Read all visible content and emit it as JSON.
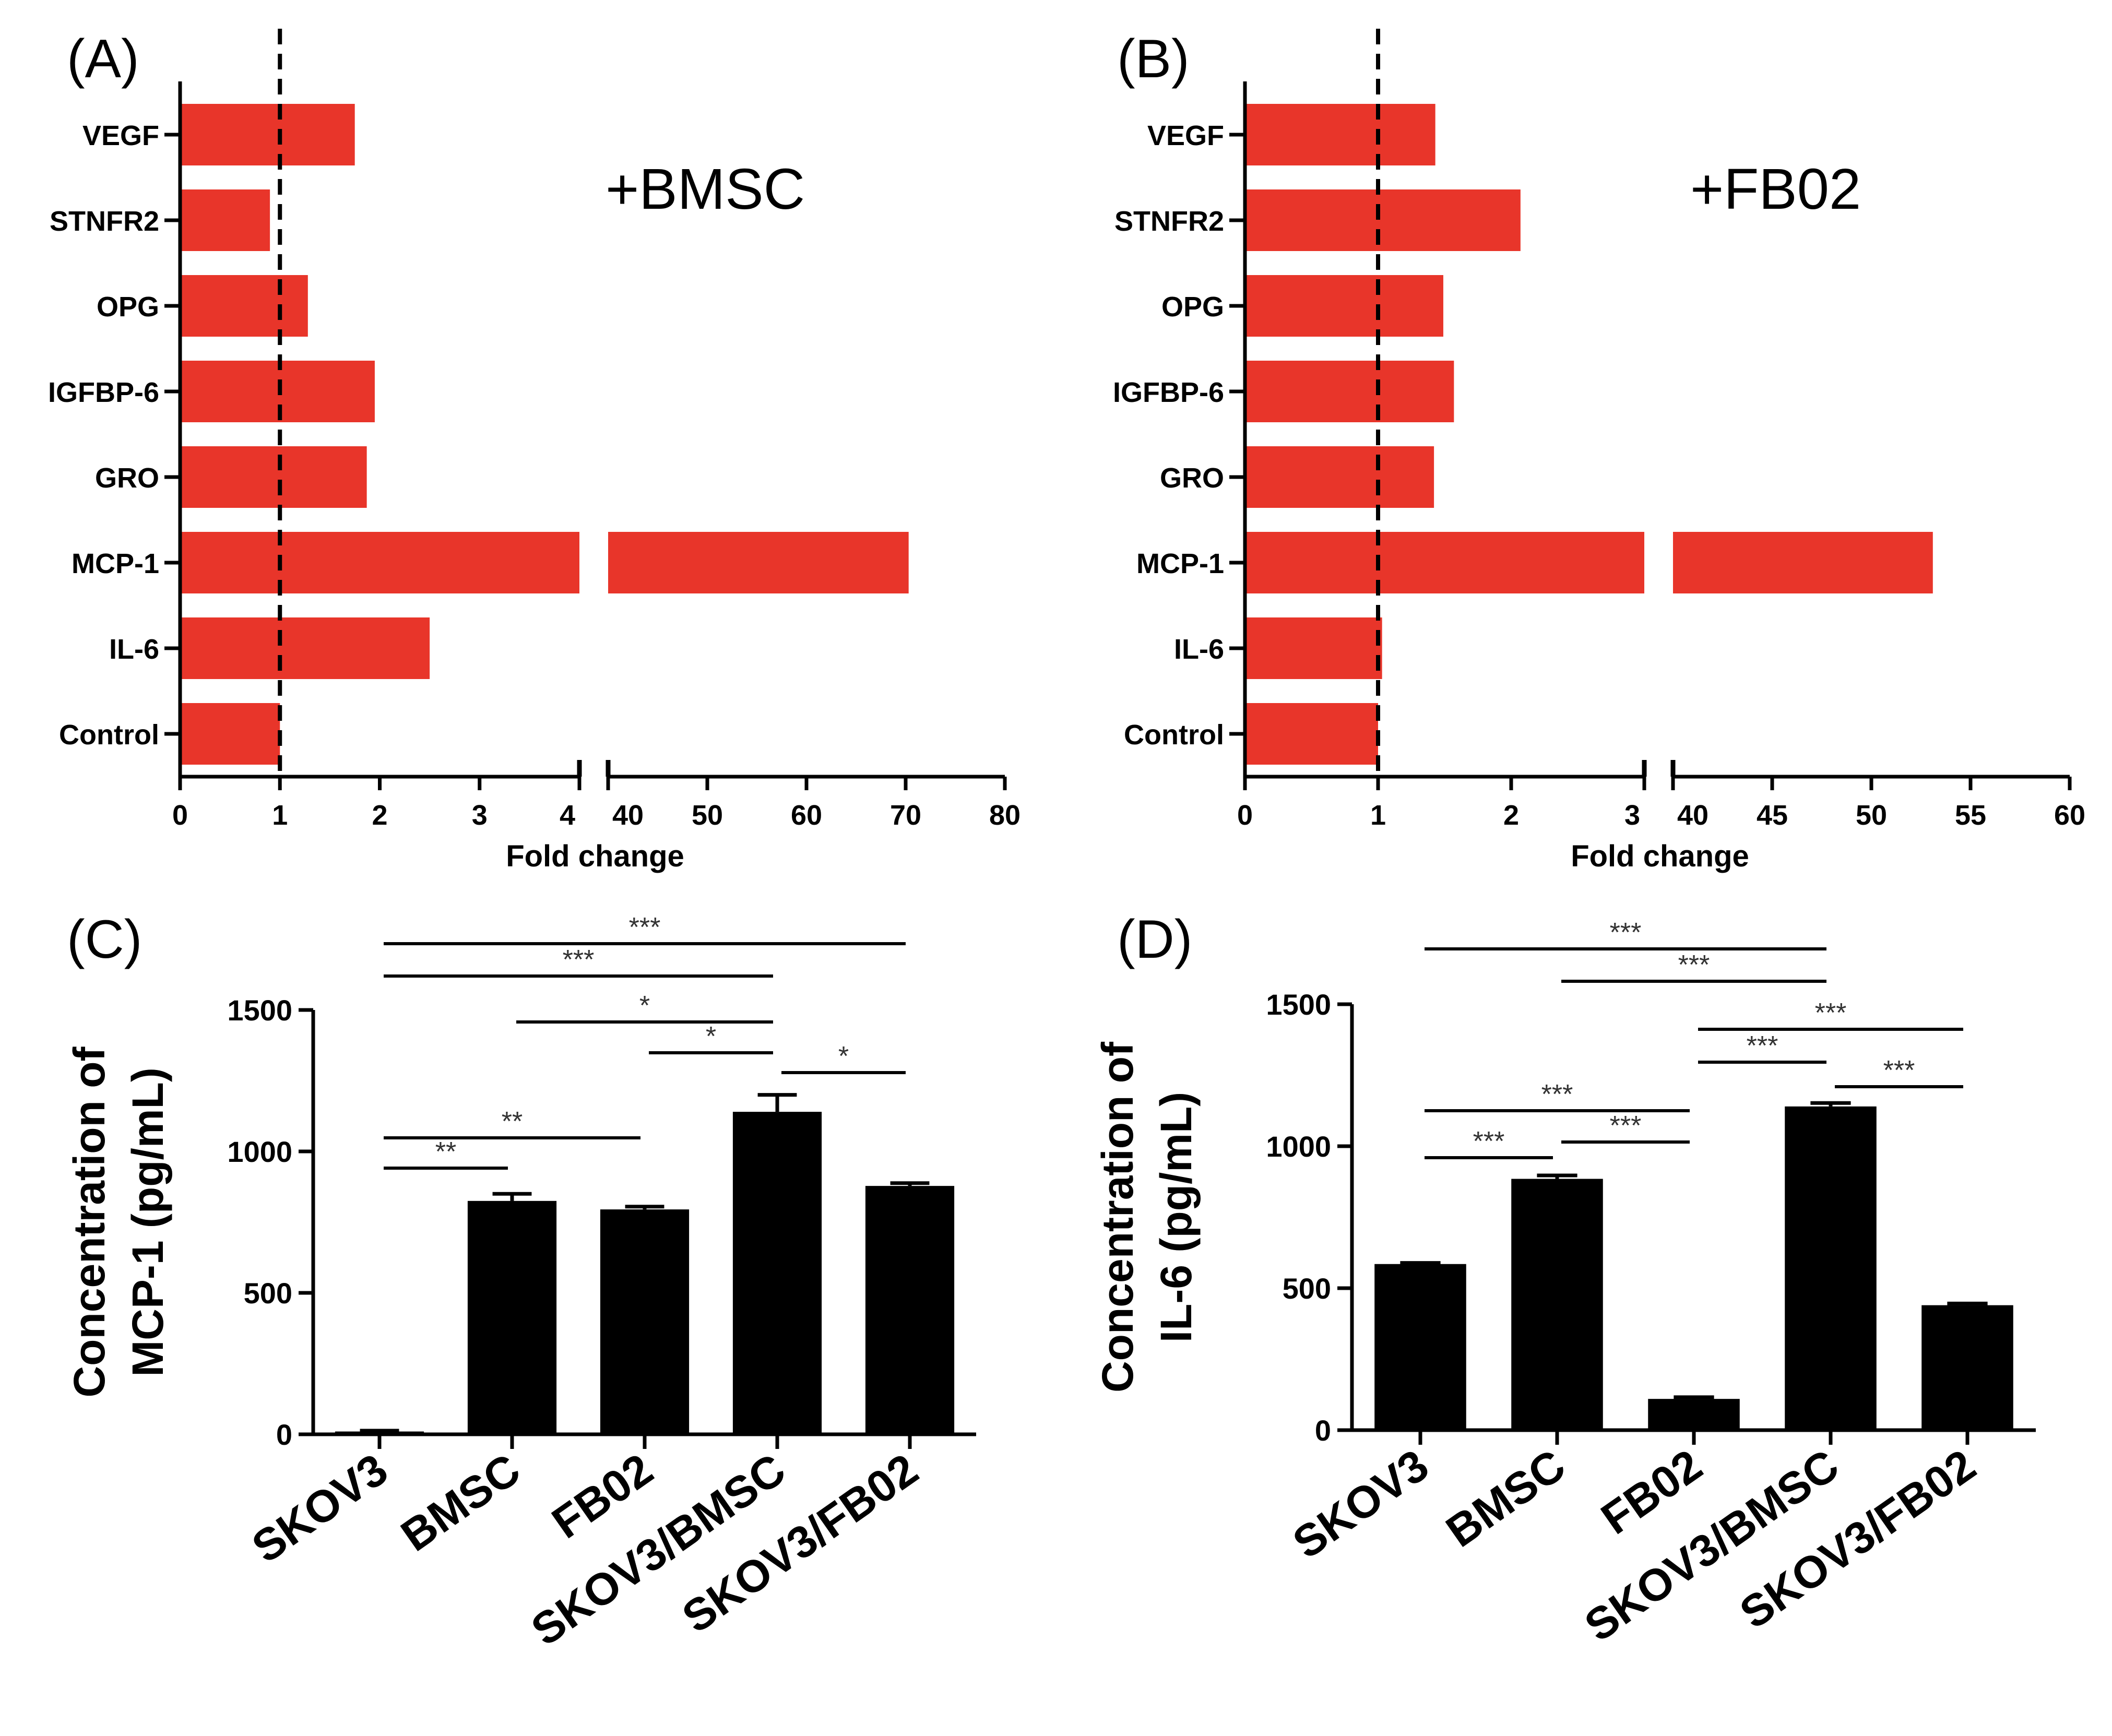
{
  "panels": [
    {
      "id": "A",
      "panel_label": "(A)",
      "annotation": "+BMSC",
      "chart_data": {
        "type": "bar",
        "orientation": "horizontal",
        "categories": [
          "VEGF",
          "STNFR2",
          "OPG",
          "IGFBP-6",
          "GRO",
          "MCP-1",
          "IL-6",
          "Control"
        ],
        "values": [
          1.75,
          0.9,
          1.28,
          1.95,
          1.87,
          70.3,
          2.5,
          1.0
        ],
        "xlabel": "Fold change",
        "reference_line": 1,
        "x_segments": [
          {
            "range": [
              0,
              4
            ],
            "ticks": [
              0,
              1,
              2,
              3,
              4
            ]
          },
          {
            "range": [
              40,
              80
            ],
            "ticks": [
              40,
              50,
              60,
              70,
              80
            ]
          }
        ],
        "bar_color": "#e8352a"
      }
    },
    {
      "id": "B",
      "panel_label": "(B)",
      "annotation": "+FB02",
      "chart_data": {
        "type": "bar",
        "orientation": "horizontal",
        "categories": [
          "VEGF",
          "STNFR2",
          "OPG",
          "IGFBP-6",
          "GRO",
          "MCP-1",
          "IL-6",
          "Control"
        ],
        "values": [
          1.43,
          2.07,
          1.49,
          1.57,
          1.42,
          53.1,
          1.03,
          1.0
        ],
        "xlabel": "Fold change",
        "reference_line": 1,
        "x_segments": [
          {
            "range": [
              0,
              3
            ],
            "ticks": [
              0,
              1,
              2,
              3
            ]
          },
          {
            "range": [
              40,
              60
            ],
            "ticks": [
              40,
              45,
              50,
              55,
              60
            ]
          }
        ],
        "bar_color": "#e8352a"
      }
    },
    {
      "id": "C",
      "panel_label": "(C)",
      "chart_data": {
        "type": "bar",
        "categories": [
          "SKOV3",
          "BMSC",
          "FB02",
          "SKOV3/BMSC",
          "SKOV3/FB02"
        ],
        "values": [
          10,
          825,
          795,
          1140,
          878
        ],
        "errors": [
          3,
          25,
          10,
          60,
          10
        ],
        "ylabel_line1": "Concentration of",
        "ylabel_line2": "MCP-1 (pg/mL)",
        "ylim": [
          0,
          1500
        ],
        "yticks": [
          0,
          500,
          1000,
          1500
        ],
        "bar_color": "#000000",
        "significance": [
          {
            "from": 0,
            "to": 4,
            "label": "***"
          },
          {
            "from": 0,
            "to": 3,
            "label": "***"
          },
          {
            "from": 1,
            "to": 3,
            "label": "*"
          },
          {
            "from": 2,
            "to": 3,
            "label": "*"
          },
          {
            "from": 3,
            "to": 4,
            "label": "*"
          },
          {
            "from": 0,
            "to": 2,
            "label": "**"
          },
          {
            "from": 0,
            "to": 1,
            "label": "**"
          }
        ]
      }
    },
    {
      "id": "D",
      "panel_label": "(D)",
      "chart_data": {
        "type": "bar",
        "categories": [
          "SKOV3",
          "BMSC",
          "FB02",
          "SKOV3/BMSC",
          "SKOV3/FB02"
        ],
        "values": [
          585,
          885,
          110,
          1140,
          440
        ],
        "errors": [
          4,
          12,
          6,
          12,
          6
        ],
        "ylabel_line1": "Concentration of",
        "ylabel_line2": "IL-6 (pg/mL)",
        "ylim": [
          0,
          1500
        ],
        "yticks": [
          0,
          500,
          1000,
          1500
        ],
        "bar_color": "#000000",
        "significance": [
          {
            "from": 0,
            "to": 3,
            "label": "***"
          },
          {
            "from": 1,
            "to": 3,
            "label": "***"
          },
          {
            "from": 2,
            "to": 4,
            "label": "***"
          },
          {
            "from": 2,
            "to": 3,
            "label": "***"
          },
          {
            "from": 3,
            "to": 4,
            "label": "***"
          },
          {
            "from": 0,
            "to": 2,
            "label": "***"
          },
          {
            "from": 1,
            "to": 2,
            "label": "***"
          },
          {
            "from": 0,
            "to": 1,
            "label": "***"
          }
        ]
      }
    }
  ]
}
